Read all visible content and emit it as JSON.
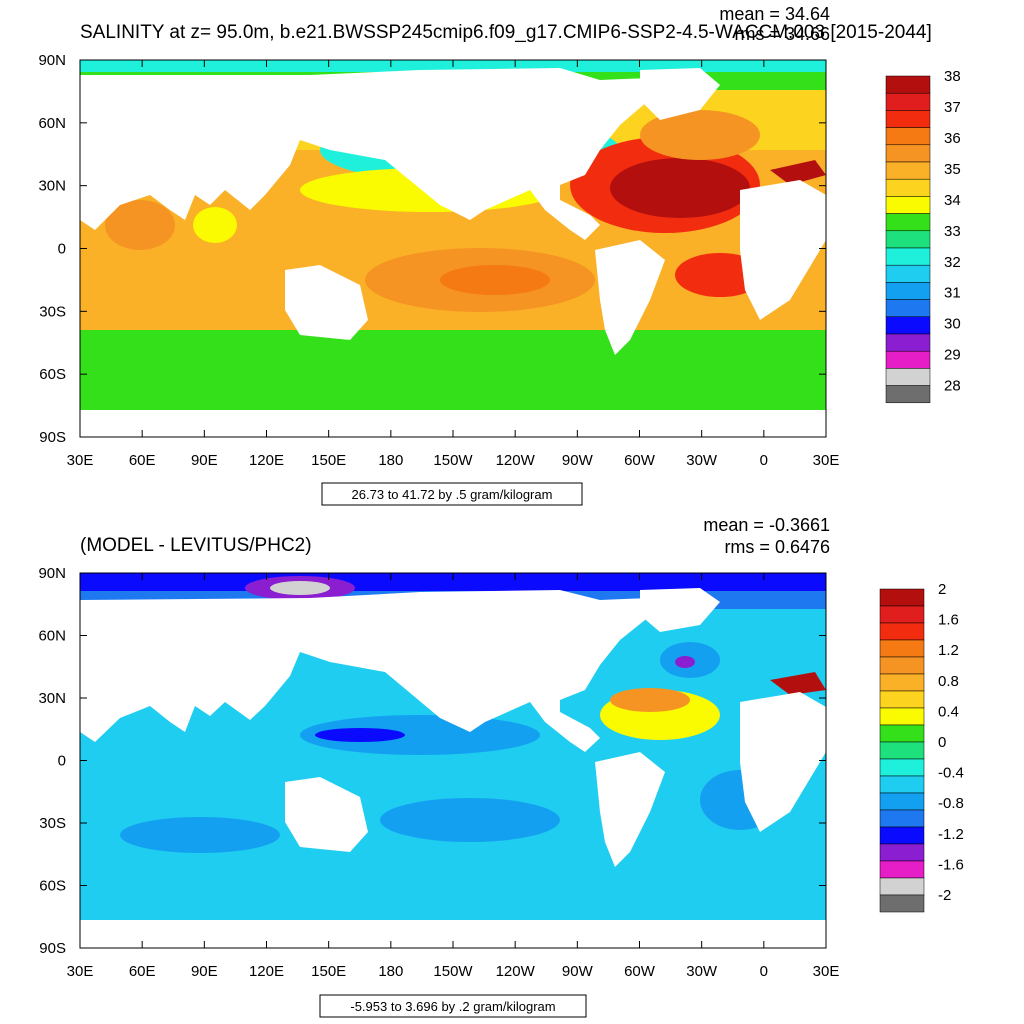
{
  "colors": {
    "salinity": [
      "#6e6e6e",
      "#d2d2d2",
      "#e61ec8",
      "#8c1ed2",
      "#0a0aff",
      "#1e78f0",
      "#14a0f0",
      "#1ecdf0",
      "#1ef0dc",
      "#1ee17d",
      "#33e01a",
      "#fafa00",
      "#fcd31e",
      "#fab128",
      "#f59423",
      "#f57a14",
      "#f22d0f",
      "#e11e1e",
      "#b40f0f"
    ],
    "difference": [
      "#6e6e6e",
      "#d2d2d2",
      "#e61ec8",
      "#8c1ed2",
      "#0a0aff",
      "#1e78f0",
      "#14a0f0",
      "#1ecdf0",
      "#1ef0dc",
      "#1ee17d",
      "#33e01a",
      "#fafa00",
      "#fcd31e",
      "#fab128",
      "#f59423",
      "#f57a14",
      "#f22d0f",
      "#e11e1e",
      "#b40f0f"
    ],
    "land": "#ffffff",
    "frame": "#000000"
  },
  "x_labels": [
    "30E",
    "60E",
    "90E",
    "120E",
    "150E",
    "180",
    "150W",
    "120W",
    "90W",
    "60W",
    "30W",
    "0",
    "30E"
  ],
  "y_labels": [
    "90N",
    "60N",
    "30N",
    "0",
    "30S",
    "60S",
    "90S"
  ],
  "panels": [
    {
      "id": "salinity",
      "title": "SALINITY at z=  95.0m, b.e21.BWSSP245cmip6.f09_g17.CMIP6-SSP2-4.5-WACCM.003 [2015-2044]",
      "mean": "mean = 34.64",
      "rms": "rms = 34.66",
      "info": "26.73 to 41.72 by .5 gram/kilogram",
      "colorbar_labels": [
        "38",
        "37",
        "36",
        "35",
        "34",
        "33",
        "32",
        "31",
        "30",
        "29",
        "28"
      ]
    },
    {
      "id": "difference",
      "title": "(MODEL - LEVITUS/PHC2)",
      "mean": "mean = -0.3661",
      "rms": "rms = 0.6476",
      "info": "-5.953 to 3.696 by .2 gram/kilogram",
      "colorbar_labels": [
        "2",
        "1.6",
        "1.2",
        "0.8",
        "0.4",
        "0",
        "-0.4",
        "-0.8",
        "-1.2",
        "-1.6",
        "-2"
      ]
    }
  ]
}
